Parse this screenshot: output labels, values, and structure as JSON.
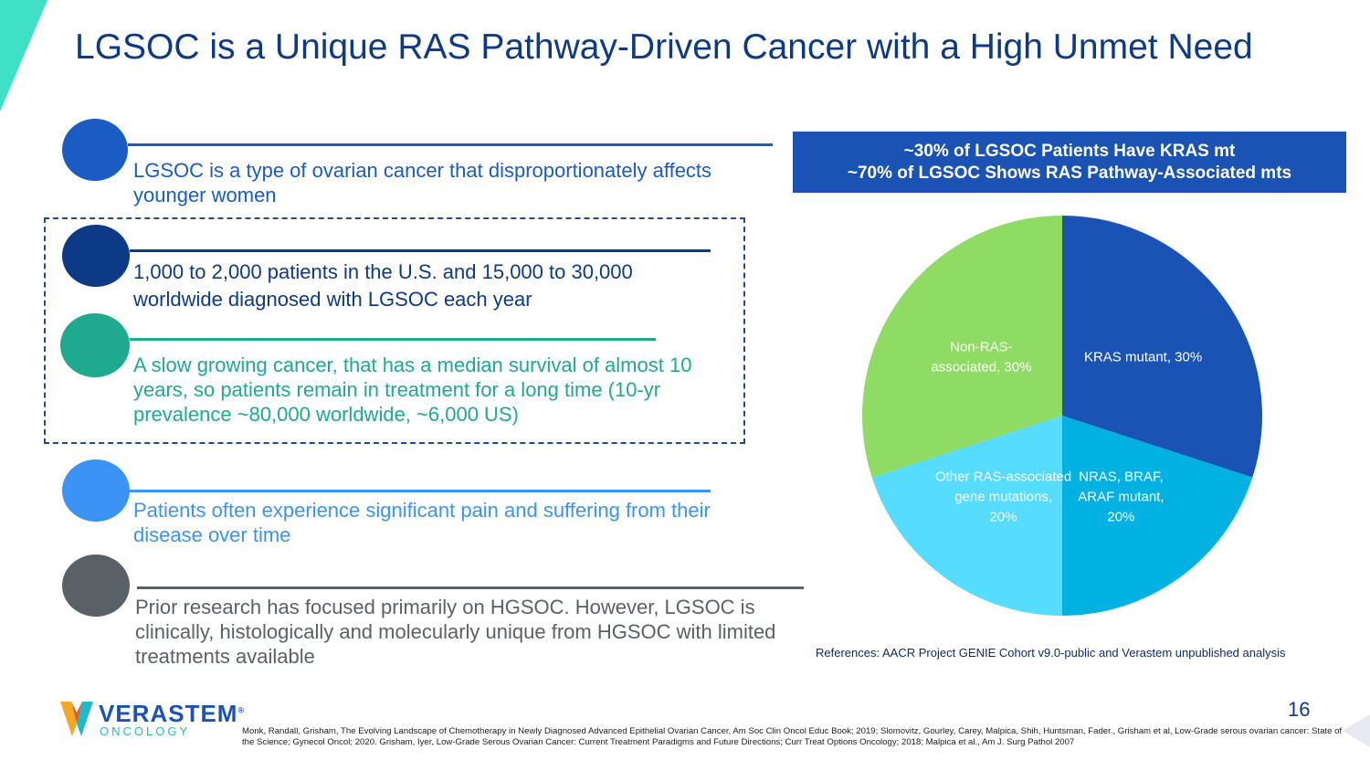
{
  "slide": {
    "title": "LGSOC is a Unique RAS Pathway-Driven Cancer with a High Unmet Need",
    "page_number": "16"
  },
  "bullets": [
    {
      "text": "LGSOC is a type of ovarian cancer that disproportionately affects younger women",
      "color": "#1a5bc4"
    },
    {
      "text": "1,000 to 2,000 patients in the U.S. and 15,000 to 30,000 worldwide diagnosed with LGSOC each year",
      "color": "#0d3a86"
    },
    {
      "text": "A slow growing cancer, that has a median survival of almost 10 years, so patients remain in treatment for a long time (10-yr prevalence ~80,000 worldwide, ~6,000 US)",
      "color": "#1fa98f"
    },
    {
      "text": "Patients often experience significant pain and suffering from their disease over time",
      "color": "#3b94f5"
    },
    {
      "text": "Prior research has focused primarily on HGSOC. However, LGSOC is clinically, histologically and molecularly unique from HGSOC with limited treatments available",
      "color": "#5a6166"
    }
  ],
  "banner": {
    "line1": "~30% of LGSOC Patients Have KRAS mt",
    "line2": "~70% of LGSOC Shows RAS Pathway-Associated mts"
  },
  "chart_data": {
    "type": "pie",
    "title": "",
    "slices": [
      {
        "name": "KRAS mutant",
        "value": 30,
        "label_lines": [
          "KRAS mutant, 30%"
        ],
        "color": "#1a53b4"
      },
      {
        "name": "NRAS, BRAF, ARAF mutant",
        "value": 20,
        "label_lines": [
          "NRAS, BRAF,",
          "ARAF mutant,",
          "20%"
        ],
        "color": "#00b1e1"
      },
      {
        "name": "Other RAS-associated gene mutations",
        "value": 20,
        "label_lines": [
          "Other RAS-associated",
          "gene mutations,",
          "20%"
        ],
        "color": "#55dcff"
      },
      {
        "name": "Non-RAS-associated",
        "value": 30,
        "label_lines": [
          "Non-RAS-",
          "associated, 30%"
        ],
        "color": "#8fdc64"
      }
    ]
  },
  "references": "References: AACR Project GENIE Cohort v9.0-public and Verastem unpublished analysis",
  "logo": {
    "name": "VERASTEM",
    "trademark": "®",
    "sub": "ONCOLOGY"
  },
  "footnote": "Monk, Randall, Grisham, The Evolving Landscape of Chemotherapy in Newly Diagnosed Advanced Epithelial Ovarian Cancer, Am Soc Clin Oncol Educ Book; 2019; Slomovitz, Gourley, Carey, Malpica, Shih, Huntsman, Fader., Grisham et al, Low-Grade serous ovarian cancer: State of the Science; Gynecol Oncol; 2020. Grisham, Iyer, Low-Grade Serous Ovarian Cancer: Current Treatment Paradigms and Future Directions; Curr Treat Options Oncology; 2018; Malpica et al., Am J. Surg Pathol 2007",
  "colors": {
    "title": "#0d3a86",
    "accent_teal": "#3fe0c5"
  }
}
